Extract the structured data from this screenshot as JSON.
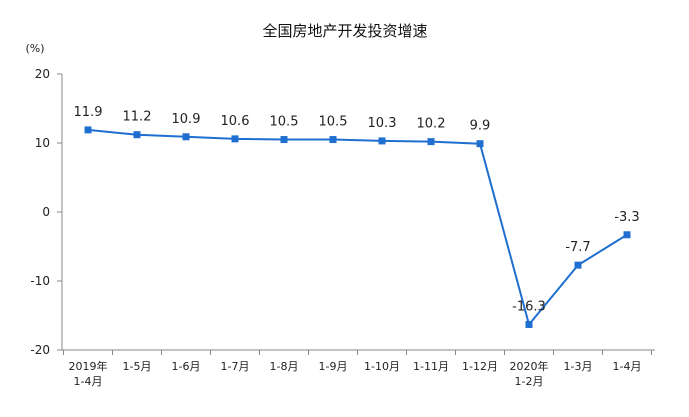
{
  "chart_data": {
    "type": "line",
    "title": "全国房地产开发投资增速",
    "unit_label": "(%)",
    "categories": [
      [
        "2019年",
        "1-4月"
      ],
      [
        "1-5月"
      ],
      [
        "1-6月"
      ],
      [
        "1-7月"
      ],
      [
        "1-8月"
      ],
      [
        "1-9月"
      ],
      [
        "1-10月"
      ],
      [
        "1-11月"
      ],
      [
        "1-12月"
      ],
      [
        "2020年",
        "1-2月"
      ],
      [
        "1-3月"
      ],
      [
        "1-4月"
      ]
    ],
    "series": [
      {
        "values": [
          11.9,
          11.2,
          10.9,
          10.6,
          10.5,
          10.5,
          10.3,
          10.2,
          9.9,
          -16.3,
          -7.7,
          -3.3
        ],
        "color": "#1F6FD1"
      }
    ],
    "ylim": [
      -20,
      20
    ],
    "yticks": [
      20,
      10,
      0,
      -10,
      -20
    ],
    "grid": false,
    "legend": false
  }
}
